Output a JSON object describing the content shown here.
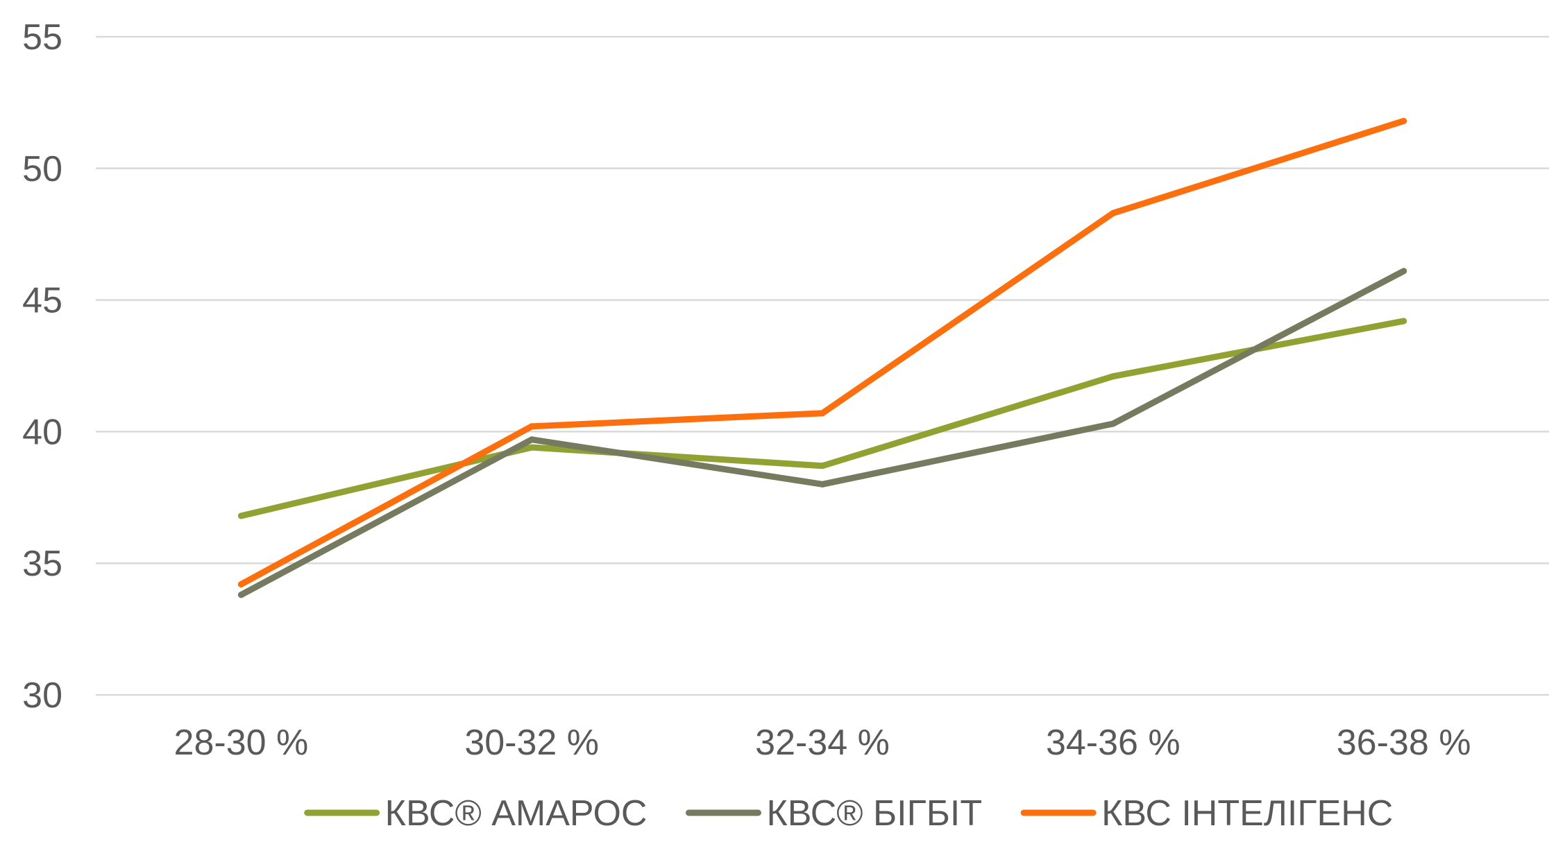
{
  "chart_data": {
    "type": "line",
    "title": "",
    "xlabel": "",
    "ylabel": "",
    "categories": [
      "28-30 %",
      "30-32 %",
      "32-34 %",
      "34-36 %",
      "36-38 %"
    ],
    "ylim": [
      30,
      55
    ],
    "yticks": [
      "30",
      "35",
      "40",
      "45",
      "50",
      "55"
    ],
    "grid": true,
    "legend_position": "bottom",
    "series": [
      {
        "name": "КВС® АМАРОС",
        "color": "#92a232",
        "values": [
          36.8,
          39.4,
          38.7,
          42.1,
          44.2
        ]
      },
      {
        "name": "КВС® БІГБІТ",
        "color": "#767a5f",
        "values": [
          33.8,
          39.7,
          38.0,
          40.3,
          46.1
        ]
      },
      {
        "name": "КВС ІНТЕЛІГЕНС",
        "color": "#fb6f0f",
        "values": [
          34.2,
          40.2,
          40.7,
          48.3,
          51.8
        ]
      }
    ]
  }
}
